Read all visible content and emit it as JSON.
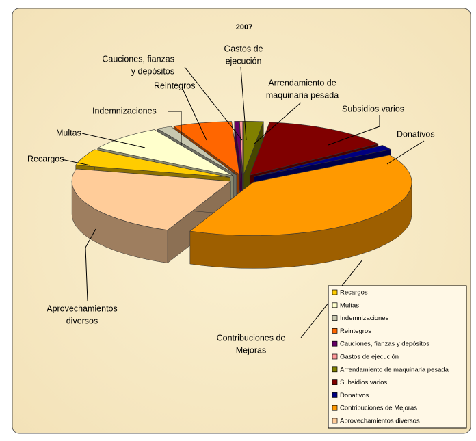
{
  "chart_data": {
    "type": "pie3d",
    "title": "2007",
    "categories": [
      "Recargos",
      "Multas",
      "Indemnizaciones",
      "Reintegros",
      "Cauciones, fianzas y depósitos",
      "Gastos de ejecución",
      "Arrendamiento de maquinaria pesada",
      "Subsidios varios",
      "Donativos",
      "Contribuciones de Mejoras",
      "Aprovechamientos diversos"
    ],
    "values": [
      5,
      8,
      1.5,
      6,
      0.5,
      0.3,
      2,
      13,
      1.5,
      40,
      22.2
    ],
    "colors": [
      "#ffcc00",
      "#ffffcc",
      "#c8c8b0",
      "#ff6600",
      "#660066",
      "#ff9999",
      "#808000",
      "#800000",
      "#000080",
      "#ff9900",
      "#ffcc99"
    ],
    "data_labels": [
      [
        "Recargos"
      ],
      [
        "Multas"
      ],
      [
        "Indemnizaciones"
      ],
      [
        "Reintegros"
      ],
      [
        "Cauciones, fianzas",
        "y depósitos"
      ],
      [
        "Gastos de",
        "ejecución"
      ],
      [
        "Arrendamiento de",
        "maquinaria pesada"
      ],
      [
        "Subsidios varios"
      ],
      [
        "Donativos"
      ],
      [
        "Contribuciones de",
        "Mejoras"
      ],
      [
        "Aprovechamientos",
        "diversos"
      ]
    ],
    "legend": "lower right"
  }
}
